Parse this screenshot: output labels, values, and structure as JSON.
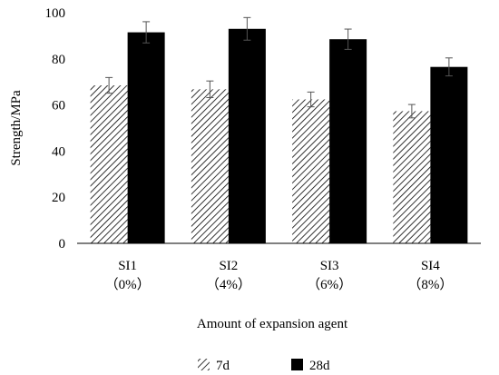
{
  "chart_data": {
    "type": "bar",
    "categories": [
      {
        "line1": "SI1",
        "line2": "（0%）"
      },
      {
        "line1": "SI2",
        "line2": "（4%）"
      },
      {
        "line1": "SI3",
        "line2": "（6%）"
      },
      {
        "line1": "SI4",
        "line2": "（8%）"
      }
    ],
    "series": [
      {
        "name": "7d",
        "values": [
          68.5,
          66.8,
          62.4,
          57.3
        ],
        "errors": [
          3.4,
          3.6,
          3.2,
          2.9
        ],
        "fill": "hatch",
        "color": "#000000"
      },
      {
        "name": "28d",
        "values": [
          91.5,
          93.0,
          88.5,
          76.5
        ],
        "errors": [
          4.6,
          4.9,
          4.4,
          3.9
        ],
        "fill": "solid",
        "color": "#000000"
      }
    ],
    "xlabel": "Amount of expansion agent",
    "ylabel": "Strength/MPa",
    "ylim": [
      0,
      100
    ],
    "yticks": [
      0,
      20,
      40,
      60,
      80,
      100
    ],
    "grid": false,
    "legend_position": "bottom"
  }
}
